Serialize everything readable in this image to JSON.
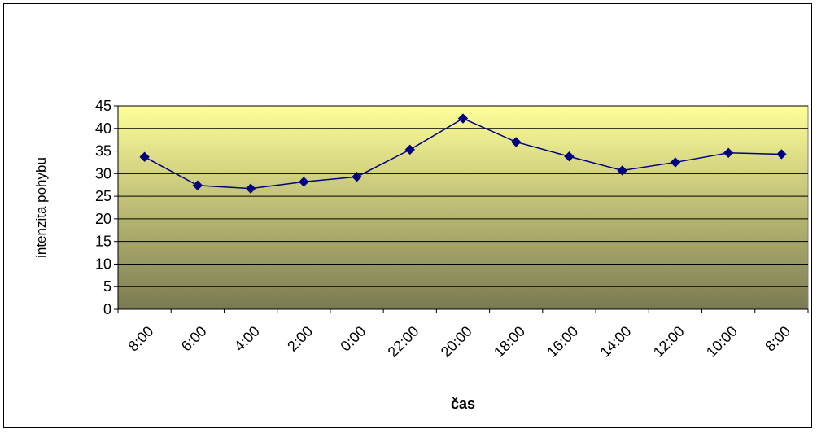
{
  "chart_data": {
    "type": "line",
    "title": "",
    "xlabel": "čas",
    "ylabel": "intenzita pohybu",
    "categories": [
      "8:00",
      "6:00",
      "4:00",
      "2:00",
      "0:00",
      "22:00",
      "20:00",
      "18:00",
      "16:00",
      "14:00",
      "12:00",
      "10:00",
      "8:00"
    ],
    "series": [
      {
        "values": [
          33.7,
          27.4,
          26.7,
          28.2,
          29.3,
          35.3,
          42.2,
          37.0,
          33.8,
          30.7,
          32.5,
          34.6,
          34.3
        ]
      }
    ],
    "ylim": [
      0,
      45
    ],
    "yticks": [
      0,
      5,
      10,
      15,
      20,
      25,
      30,
      35,
      40,
      45
    ],
    "grid": true,
    "legend": "none",
    "colors": {
      "line": "#000080",
      "marker": "#000080",
      "plot_top": "#ffff99",
      "plot_bottom": "#7a7a52",
      "grid": "#000000"
    }
  }
}
